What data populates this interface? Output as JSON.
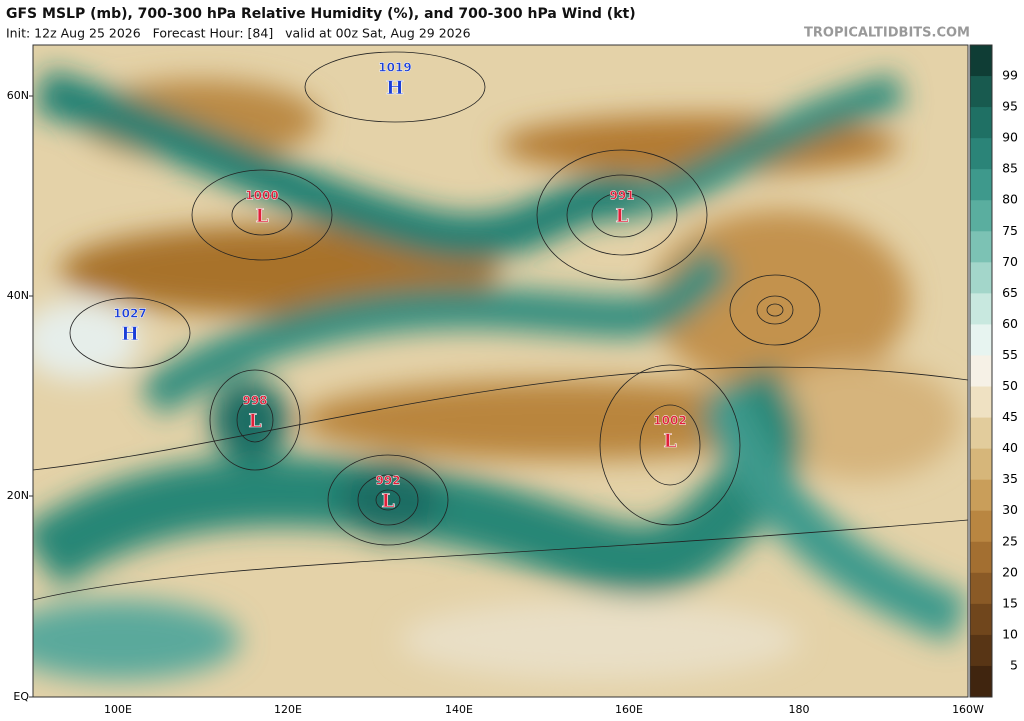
{
  "header": {
    "title": "GFS MSLP (mb), 700-300 hPa Relative Humidity (%), and 700-300 hPa Wind (kt)",
    "subtitle": "Init: 12z Aug 25 2026   Forecast Hour: [84]   valid at 00z Sat, Aug 29 2026",
    "brand": "TROPICALTIDBITS.COM"
  },
  "map": {
    "lat_labels": [
      "60N",
      "40N",
      "20N",
      "EQ"
    ],
    "lon_labels": [
      "100E",
      "120E",
      "140E",
      "160E",
      "180",
      "160W"
    ],
    "centers": [
      {
        "letter": "H",
        "value": "1019"
      },
      {
        "letter": "L",
        "value": "1000"
      },
      {
        "letter": "L",
        "value": "991"
      },
      {
        "letter": "H",
        "value": "1027"
      },
      {
        "letter": "L",
        "value": "998"
      },
      {
        "letter": "L",
        "value": "992"
      },
      {
        "letter": "L",
        "value": "1002"
      }
    ]
  },
  "colorbar": {
    "labels": [
      "99",
      "95",
      "90",
      "85",
      "80",
      "75",
      "70",
      "65",
      "60",
      "55",
      "50",
      "45",
      "40",
      "35",
      "30",
      "25",
      "20",
      "15",
      "10",
      "5"
    ]
  }
}
